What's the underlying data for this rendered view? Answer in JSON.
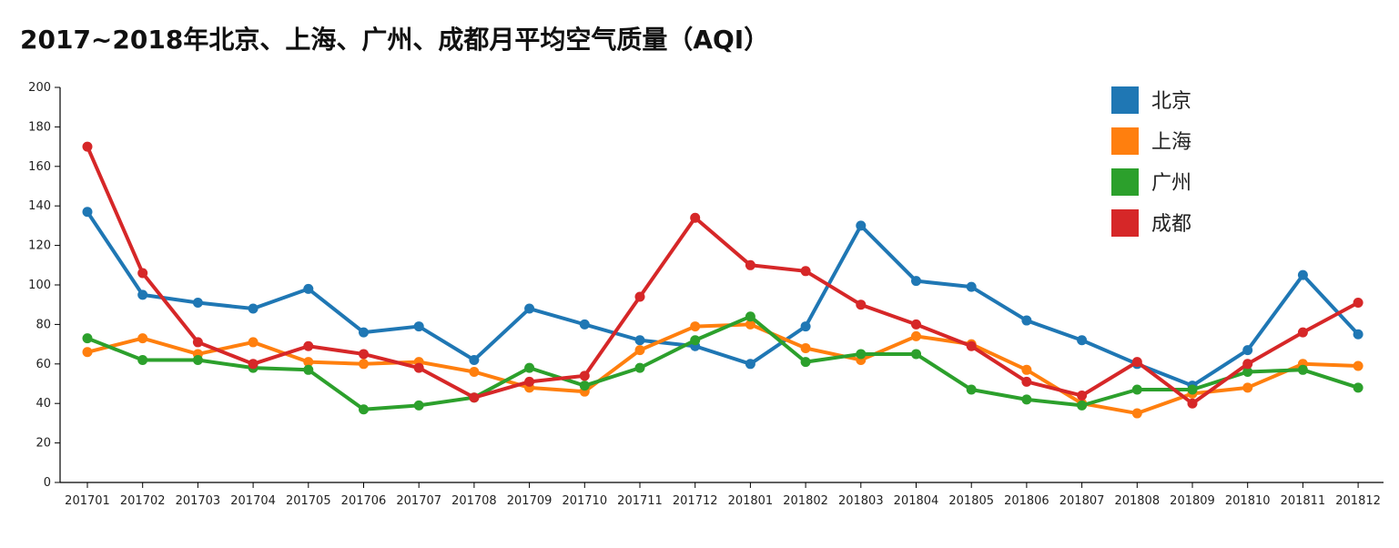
{
  "chart_data": {
    "type": "line",
    "title": "2017~2018年北京、上海、广州、成都月平均空气质量（AQI）",
    "xlabel": "",
    "ylabel": "",
    "ylim": [
      0,
      200
    ],
    "yticks": [
      0,
      20,
      40,
      60,
      80,
      100,
      120,
      140,
      160,
      180,
      200
    ],
    "legend_position": "top-right",
    "grid": false,
    "categories": [
      "201701",
      "201702",
      "201703",
      "201704",
      "201705",
      "201706",
      "201707",
      "201708",
      "201709",
      "201710",
      "201711",
      "201712",
      "201801",
      "201802",
      "201803",
      "201804",
      "201805",
      "201806",
      "201807",
      "201808",
      "201809",
      "201810",
      "201811",
      "201812"
    ],
    "series": [
      {
        "name": "北京",
        "color": "#1f77b4",
        "values": [
          137,
          95,
          91,
          88,
          98,
          76,
          79,
          62,
          88,
          80,
          72,
          69,
          60,
          79,
          130,
          102,
          99,
          82,
          72,
          60,
          49,
          67,
          105,
          75
        ]
      },
      {
        "name": "上海",
        "color": "#ff7f0e",
        "values": [
          66,
          73,
          65,
          71,
          61,
          60,
          61,
          56,
          48,
          46,
          67,
          79,
          80,
          68,
          62,
          74,
          70,
          57,
          40,
          35,
          45,
          48,
          60,
          59
        ]
      },
      {
        "name": "广州",
        "color": "#2ca02c",
        "values": [
          73,
          62,
          62,
          58,
          57,
          37,
          39,
          43,
          58,
          49,
          58,
          72,
          84,
          61,
          65,
          65,
          47,
          42,
          39,
          47,
          47,
          56,
          57,
          48
        ]
      },
      {
        "name": "成都",
        "color": "#d62728",
        "values": [
          170,
          106,
          71,
          60,
          69,
          65,
          58,
          43,
          51,
          54,
          94,
          134,
          110,
          107,
          90,
          80,
          69,
          51,
          44,
          61,
          40,
          60,
          76,
          91
        ]
      }
    ]
  }
}
